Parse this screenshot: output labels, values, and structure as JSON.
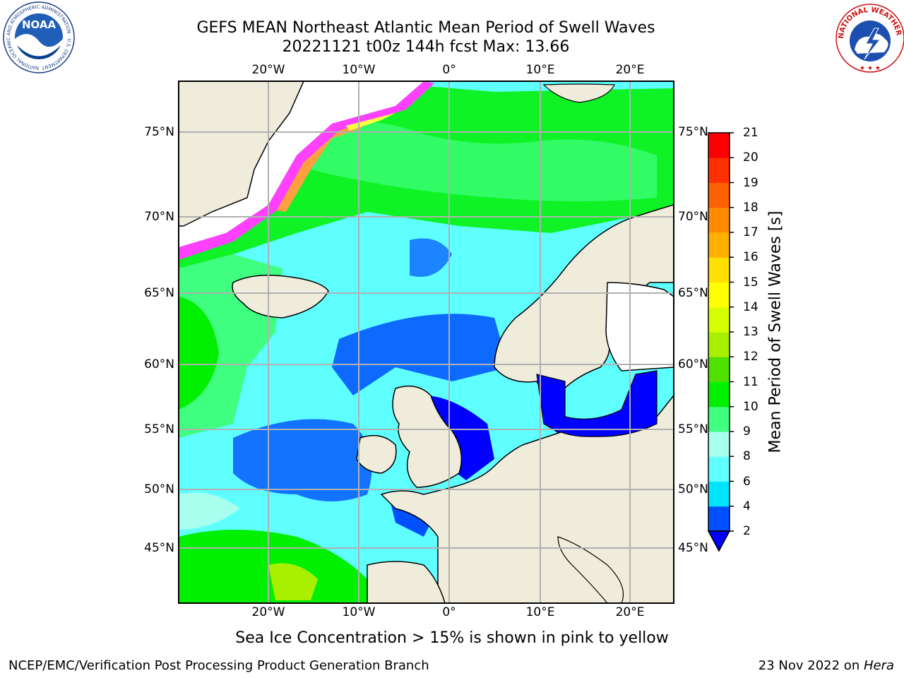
{
  "title": {
    "line1": "GEFS MEAN Northeast Atlantic Mean Period of Swell Waves",
    "line2": "20221121 t00z 144h fcst   Max: 13.66"
  },
  "map": {
    "lon_labels": [
      "20°W",
      "10°W",
      "0°",
      "10°E",
      "20°E"
    ],
    "lat_labels": [
      "75°N",
      "70°N",
      "65°N",
      "60°N",
      "55°N",
      "50°N",
      "45°N"
    ],
    "colors": {
      "land": "#efecdc",
      "coastline": "#000000",
      "gridlines": "#b0b0b0",
      "ice_pink": "#ff40ff",
      "ice_orange": "#ffa040",
      "ice_yellow": "#ffff40"
    }
  },
  "colorbar": {
    "label": "Mean Period of Swell Waves [s]",
    "ticks": [
      "21",
      "20",
      "19",
      "18",
      "17",
      "16",
      "15",
      "14",
      "13",
      "12",
      "11",
      "10",
      "9",
      "8",
      "6",
      "4",
      "2"
    ],
    "colors_bottom_to_top": [
      "#0050ff",
      "#00e4ff",
      "#60ffff",
      "#a8ffee",
      "#40ff80",
      "#00f000",
      "#50e000",
      "#a8f000",
      "#d8ff00",
      "#ffff00",
      "#ffe000",
      "#ffb000",
      "#ff8c00",
      "#ff6000",
      "#ff3000",
      "#ff0000"
    ],
    "under_color": "#0000ff"
  },
  "caption": "Sea Ice Concentration > 15% is shown in pink to yellow",
  "footer": {
    "left": "NCEP/EMC/Verification Post Processing Product Generation Branch",
    "right_prefix": "23 Nov 2022 on ",
    "right_host": "Hera"
  },
  "logos": {
    "left": "NOAA",
    "left_ring": "NATIONAL OCEANIC AND ATMOSPHERIC ADMINISTRATION · U.S. DEPARTMENT OF COMMERCE",
    "right_ring": "NATIONAL WEATHER SERVICE"
  }
}
